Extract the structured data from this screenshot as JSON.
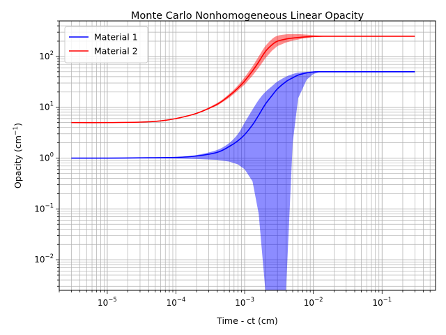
{
  "chart_data": {
    "type": "line",
    "title": "Monte Carlo Nonhomogeneous Linear Opacity",
    "xlabel": "Time - ct (cm)",
    "ylabel_main": "Opacity (cm",
    "ylabel_sup": "−1",
    "ylabel_close": ")",
    "xscale": "log",
    "yscale": "log",
    "xlim": [
      2e-06,
      0.6
    ],
    "ylim": [
      0.0025,
      500
    ],
    "grid": true,
    "grid_which": "both",
    "legend_position": "upper-left",
    "x_ticks": [
      {
        "value": 1e-05,
        "base": "10",
        "exp": "−5"
      },
      {
        "value": 0.0001,
        "base": "10",
        "exp": "−4"
      },
      {
        "value": 0.001,
        "base": "10",
        "exp": "−3"
      },
      {
        "value": 0.01,
        "base": "10",
        "exp": "−2"
      },
      {
        "value": 0.1,
        "base": "10",
        "exp": "−1"
      }
    ],
    "y_ticks": [
      {
        "value": 0.01,
        "base": "10",
        "exp": "−2"
      },
      {
        "value": 0.1,
        "base": "10",
        "exp": "−1"
      },
      {
        "value": 1,
        "base": "10",
        "exp": "0"
      },
      {
        "value": 10,
        "base": "10",
        "exp": "1"
      },
      {
        "value": 100,
        "base": "10",
        "exp": "2"
      }
    ],
    "series": [
      {
        "name": "Material 1",
        "color": "#0000ff",
        "band_color": "#0000ff",
        "x": [
          3e-06,
          1e-05,
          3e-05,
          0.0001,
          0.0002,
          0.0004,
          0.0006,
          0.0008,
          0.001,
          0.0013,
          0.0016,
          0.002,
          0.0025,
          0.003,
          0.004,
          0.005,
          0.006,
          0.008,
          0.01,
          0.012,
          0.015,
          0.02,
          0.05,
          0.1,
          0.3
        ],
        "y": [
          1.0,
          1.0,
          1.01,
          1.03,
          1.1,
          1.3,
          1.7,
          2.2,
          2.9,
          4.5,
          7.0,
          11.5,
          17.0,
          23.0,
          32.0,
          38.0,
          43.0,
          47.5,
          49.5,
          50.0,
          50.0,
          50.0,
          50.0,
          50.0,
          50.0
        ],
        "upper": [
          1.0,
          1.0,
          1.01,
          1.05,
          1.15,
          1.45,
          2.0,
          3.0,
          5.0,
          9.0,
          14.0,
          20.0,
          26.0,
          32.0,
          40.0,
          45.0,
          48.0,
          50.0,
          51.0,
          51.0,
          50.5,
          50.0,
          50.0,
          50.0,
          50.0
        ],
        "lower": [
          1.0,
          1.0,
          1.0,
          0.98,
          0.96,
          0.92,
          0.85,
          0.75,
          0.6,
          0.35,
          0.08,
          0.0025,
          0.0025,
          0.0025,
          0.0025,
          2.0,
          15.0,
          35.0,
          45.0,
          49.0,
          50.0,
          50.0,
          50.0,
          50.0,
          50.0
        ]
      },
      {
        "name": "Material 2",
        "color": "#ff0000",
        "band_color": "#ff0000",
        "x": [
          3e-06,
          1e-05,
          3e-05,
          6e-05,
          0.0001,
          0.0002,
          0.0004,
          0.0006,
          0.0008,
          0.001,
          0.0013,
          0.0016,
          0.002,
          0.0025,
          0.003,
          0.004,
          0.005,
          0.007,
          0.01,
          0.015,
          0.02,
          0.05,
          0.1,
          0.3
        ],
        "y": [
          5.0,
          5.0,
          5.1,
          5.4,
          6.0,
          7.6,
          11.5,
          17.0,
          24.0,
          33.0,
          52.0,
          78.0,
          125.0,
          170.0,
          200.0,
          220.0,
          230.0,
          240.0,
          248.0,
          250.0,
          250.0,
          250.0,
          250.0,
          250.0
        ],
        "upper": [
          5.0,
          5.0,
          5.1,
          5.4,
          6.1,
          7.8,
          12.2,
          18.5,
          27.0,
          39.0,
          64.0,
          100.0,
          160.0,
          220.0,
          255.0,
          272.0,
          275.0,
          272.0,
          262.0,
          254.0,
          251.0,
          250.0,
          250.0,
          250.0
        ],
        "lower": [
          5.0,
          5.0,
          5.1,
          5.3,
          5.9,
          7.4,
          10.8,
          15.5,
          21.5,
          28.0,
          42.0,
          60.0,
          92.0,
          130.0,
          160.0,
          188.0,
          205.0,
          225.0,
          240.0,
          248.0,
          250.0,
          250.0,
          250.0,
          250.0
        ]
      }
    ]
  }
}
